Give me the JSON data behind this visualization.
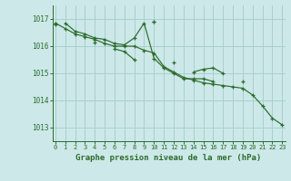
{
  "title": "Graphe pression niveau de la mer (hPa)",
  "background_color": "#cce8e8",
  "grid_color": "#aacfcf",
  "line_color": "#2d6b2d",
  "ylim": [
    1012.5,
    1017.5
  ],
  "yticks": [
    1013,
    1014,
    1015,
    1016,
    1017
  ],
  "xlim": [
    -0.3,
    23.3
  ],
  "xticks": [
    0,
    1,
    2,
    3,
    4,
    5,
    6,
    7,
    8,
    9,
    10,
    11,
    12,
    13,
    14,
    15,
    16,
    17,
    18,
    19,
    20,
    21,
    22,
    23
  ],
  "series": [
    [
      1016.85,
      1016.65,
      1016.45,
      1016.35,
      1016.25,
      1016.1,
      1016.0,
      1016.0,
      1016.0,
      1015.85,
      1015.75,
      1015.25,
      1015.05,
      1014.85,
      1014.75,
      1014.65,
      1014.6,
      1014.55,
      1014.5,
      1014.45,
      1014.2,
      1013.8,
      1013.35,
      1013.1
    ],
    [
      1016.85,
      1016.55,
      1016.45,
      1016.3,
      1016.25,
      1016.1,
      1016.05,
      1016.3,
      1016.85,
      1015.55,
      1015.2,
      1015.0,
      1014.8,
      1014.8,
      1014.8,
      1014.7,
      null,
      null,
      1014.7,
      null,
      null,
      null,
      null,
      null
    ],
    [
      1016.8,
      null,
      null,
      null,
      1016.15,
      null,
      1015.9,
      1015.8,
      1015.5,
      null,
      1016.9,
      null,
      1015.4,
      null,
      1015.05,
      1015.15,
      1015.2,
      1015.0,
      null,
      null,
      null,
      null,
      null,
      null
    ],
    [
      1016.85,
      null,
      null,
      null,
      null,
      null,
      null,
      null,
      null,
      null,
      1016.9,
      null,
      null,
      null,
      null,
      null,
      null,
      null,
      null,
      null,
      null,
      null,
      null,
      null
    ]
  ],
  "series2_xstart": 1,
  "font_size_xtick": 5,
  "font_size_ytick": 5.5,
  "font_size_xlabel": 6.5
}
